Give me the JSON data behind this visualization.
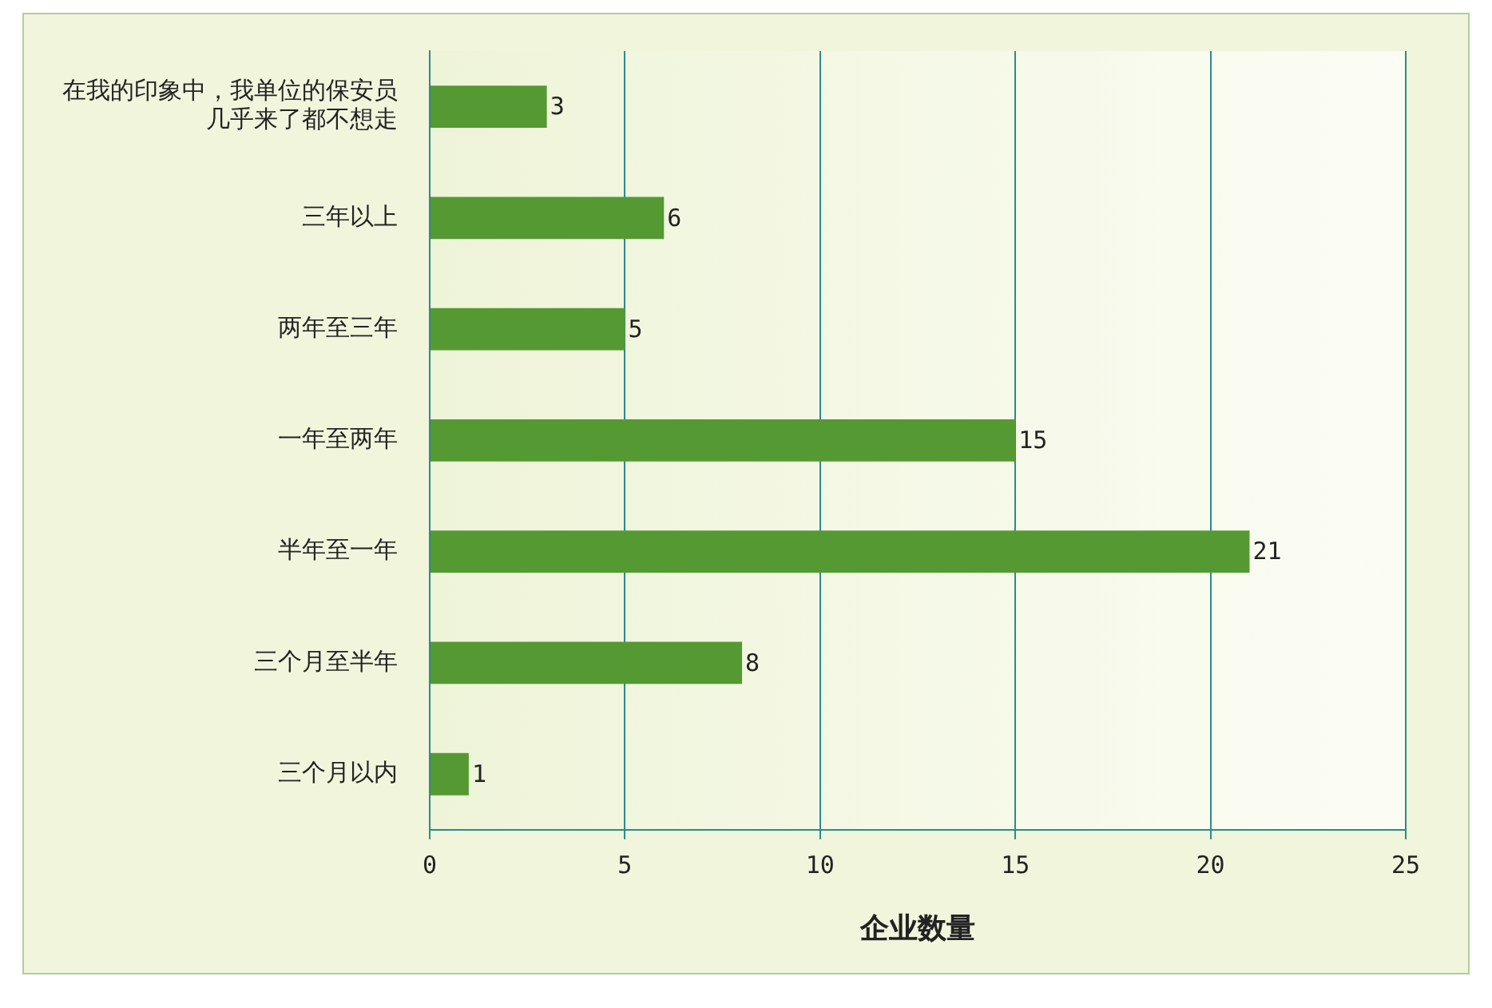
{
  "chart_data": {
    "type": "bar",
    "orientation": "horizontal",
    "xlabel": "企业数量",
    "categories": [
      "在我的印象中，我单位的保安员几乎来了都不想走",
      "三年以上",
      "两年至三年",
      "一年至两年",
      "半年至一年",
      "三个月至半年",
      "三个月以内"
    ],
    "values": [
      3,
      6,
      5,
      15,
      21,
      8,
      1
    ],
    "color": "#559933",
    "xlim": [
      0,
      25
    ],
    "xticks": [
      0,
      5,
      10,
      15,
      20,
      25
    ],
    "grid": "x",
    "data_labels": true
  }
}
